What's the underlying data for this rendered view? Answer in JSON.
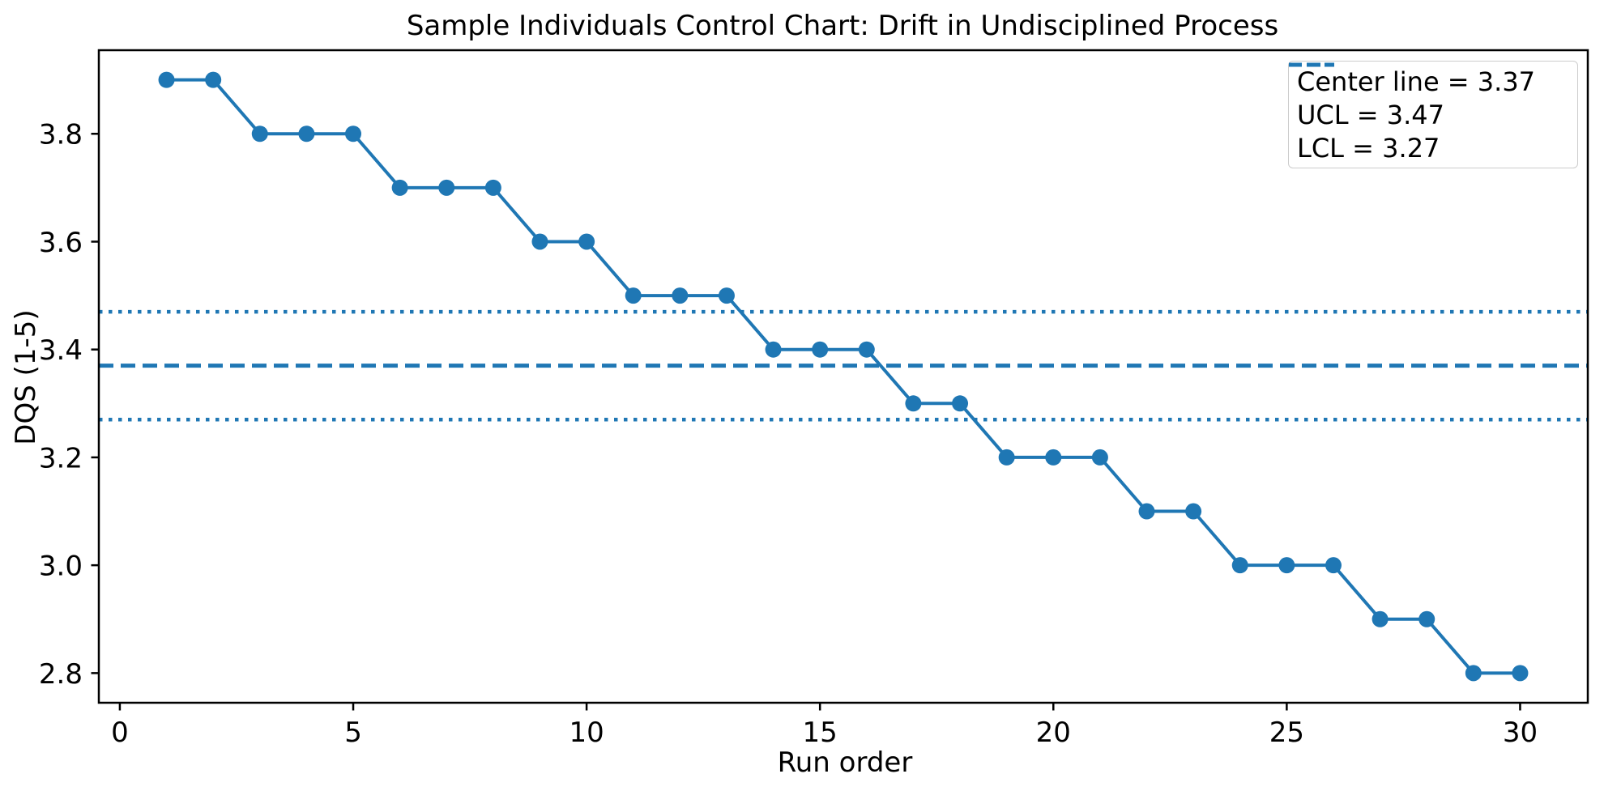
{
  "chart_data": {
    "type": "line",
    "title": "Sample Individuals Control Chart: Drift in Undisciplined Process",
    "xlabel": "Run order",
    "ylabel": "DQS (1-5)",
    "x": [
      1,
      2,
      3,
      4,
      5,
      6,
      7,
      8,
      9,
      10,
      11,
      12,
      13,
      14,
      15,
      16,
      17,
      18,
      19,
      20,
      21,
      22,
      23,
      24,
      25,
      26,
      27,
      28,
      29,
      30
    ],
    "y": [
      3.9,
      3.9,
      3.8,
      3.8,
      3.8,
      3.7,
      3.7,
      3.7,
      3.6,
      3.6,
      3.5,
      3.5,
      3.5,
      3.4,
      3.4,
      3.4,
      3.3,
      3.3,
      3.2,
      3.2,
      3.2,
      3.1,
      3.1,
      3.0,
      3.0,
      3.0,
      2.9,
      2.9,
      2.8,
      2.8
    ],
    "center_line": 3.37,
    "ucl": 3.47,
    "lcl": 3.27,
    "xlim": [
      -0.45,
      31.45
    ],
    "ylim": [
      2.745,
      3.955
    ],
    "xticks": [
      0,
      5,
      10,
      15,
      20,
      25,
      30
    ],
    "xtick_labels": [
      "0",
      "5",
      "10",
      "15",
      "20",
      "25",
      "30"
    ],
    "yticks": [
      2.8,
      3.0,
      3.2,
      3.4,
      3.6,
      3.8
    ],
    "ytick_labels": [
      "2.8",
      "3.0",
      "3.2",
      "3.4",
      "3.6",
      "3.8"
    ],
    "grid": false,
    "legend_position": "upper right",
    "legend": [
      {
        "label": "Center line = 3.37",
        "style": "dashed"
      },
      {
        "label": "UCL = 3.47",
        "style": "dotted"
      },
      {
        "label": "LCL = 3.27",
        "style": "dotted"
      }
    ],
    "series_color": "#1f77b4",
    "spine_color": "#000000",
    "legend_border_color": "#cccccc"
  }
}
